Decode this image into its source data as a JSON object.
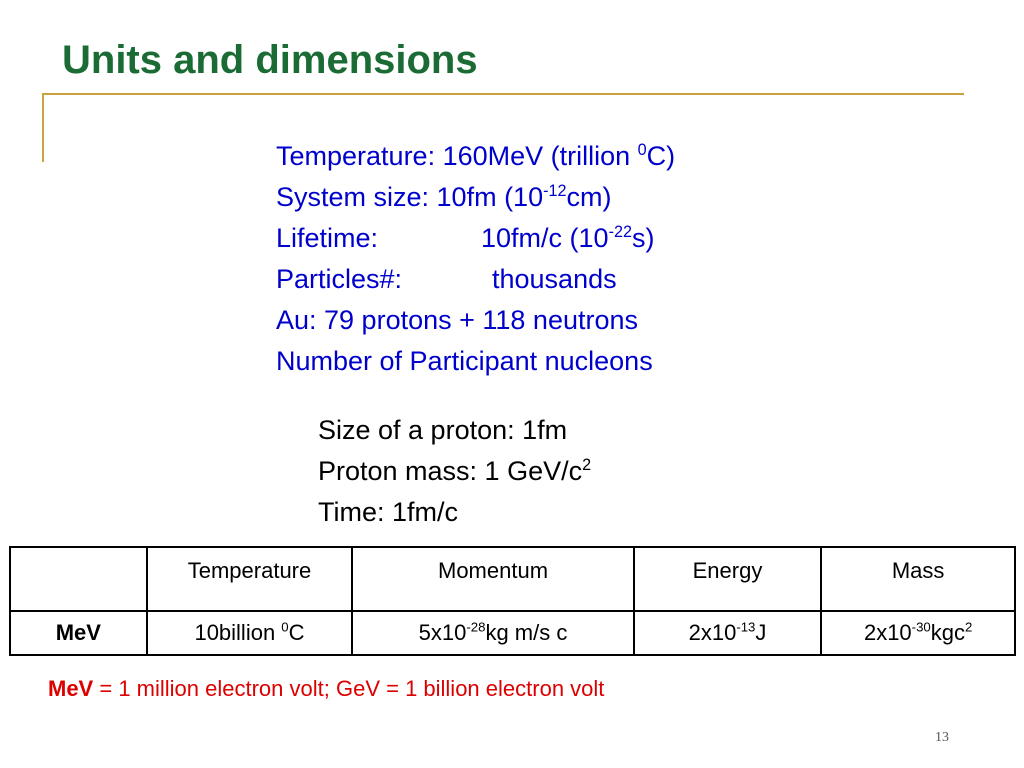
{
  "slide": {
    "title": "Units and dimensions",
    "page_number": "13",
    "colors": {
      "title": "#1a6b34",
      "body": "#0000cc",
      "accent_rule": "#c8a23c",
      "note": "#dd0000"
    }
  },
  "facts": {
    "temperature": {
      "text": "Temperature: 160MeV (trillion ",
      "sup": "0",
      "after": "C)"
    },
    "system_size": {
      "text": "System size: 10fm (10",
      "sup": "-12",
      "after": "cm)"
    },
    "lifetime": {
      "label": "Lifetime:",
      "text": "10fm/c (10",
      "sup": "-22",
      "after": "s)"
    },
    "particles": {
      "label": "Particles#:",
      "value": "thousands"
    },
    "au": "Au: 79 protons + 118 neutrons",
    "participants": "Number of Participant nucleons"
  },
  "proton": {
    "size": "Size of a proton: 1fm",
    "mass": {
      "text": "Proton mass: 1 GeV/c",
      "sup": "2"
    },
    "time": "Time: 1fm/c"
  },
  "table": {
    "headers": [
      "",
      "Temperature",
      "Momentum",
      "Energy",
      "Mass"
    ],
    "row_label": "MeV",
    "cells": [
      {
        "text": "10billion ",
        "sup": "0",
        "after": "C"
      },
      {
        "text": "5x10",
        "sup": "-28",
        "after": "kg m/s c"
      },
      {
        "text": "2x10",
        "sup": "-13",
        "after": "J"
      },
      {
        "text": "2x10",
        "sup": "-30",
        "after": "kgc",
        "sup2": "2"
      }
    ]
  },
  "note": {
    "bold": "MeV",
    "text": " = 1 million electron volt; GeV = 1 billion electron volt"
  }
}
